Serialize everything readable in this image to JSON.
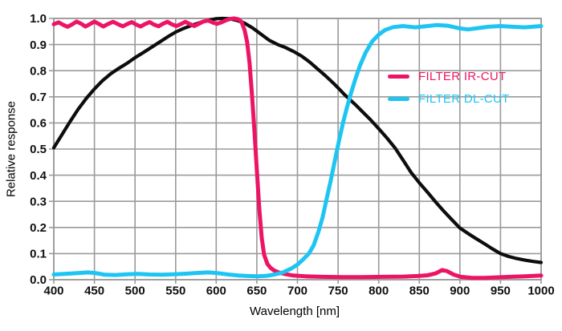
{
  "chart_data": {
    "type": "line",
    "title": "",
    "xlabel": "Wavelength [nm]",
    "ylabel": "Relative response",
    "xlim": [
      400,
      1000
    ],
    "ylim": [
      0,
      1.0
    ],
    "grid": true,
    "grid_color": "#9a9a9a",
    "tick_label_color": "#111111",
    "legend_position": "upper-right",
    "x_ticks": [
      "400",
      "450",
      "500",
      "550",
      "600",
      "650",
      "700",
      "750",
      "800",
      "850",
      "900",
      "950",
      "1000"
    ],
    "y_ticks": [
      "0.0",
      "0.1",
      "0.2",
      "0.3",
      "0.4",
      "0.5",
      "0.6",
      "0.7",
      "0.8",
      "0.9",
      "1.0"
    ],
    "series": [
      {
        "id": "sensor-response",
        "name": "",
        "in_legend": false,
        "color": "#0d0d0d",
        "stroke_width": 4.2,
        "points": [
          [
            400,
            0.505
          ],
          [
            410,
            0.555
          ],
          [
            420,
            0.605
          ],
          [
            430,
            0.652
          ],
          [
            440,
            0.694
          ],
          [
            450,
            0.73
          ],
          [
            460,
            0.762
          ],
          [
            470,
            0.788
          ],
          [
            480,
            0.809
          ],
          [
            490,
            0.828
          ],
          [
            500,
            0.85
          ],
          [
            510,
            0.869
          ],
          [
            520,
            0.889
          ],
          [
            530,
            0.909
          ],
          [
            540,
            0.929
          ],
          [
            550,
            0.948
          ],
          [
            560,
            0.962
          ],
          [
            570,
            0.974
          ],
          [
            580,
            0.984
          ],
          [
            590,
            0.993
          ],
          [
            600,
            0.999
          ],
          [
            608,
            1.0
          ],
          [
            616,
            0.999
          ],
          [
            625,
            0.993
          ],
          [
            635,
            0.982
          ],
          [
            645,
            0.963
          ],
          [
            655,
            0.94
          ],
          [
            665,
            0.917
          ],
          [
            675,
            0.901
          ],
          [
            685,
            0.889
          ],
          [
            695,
            0.874
          ],
          [
            705,
            0.856
          ],
          [
            715,
            0.833
          ],
          [
            725,
            0.806
          ],
          [
            735,
            0.779
          ],
          [
            745,
            0.75
          ],
          [
            752,
            0.728
          ],
          [
            758,
            0.708
          ],
          [
            765,
            0.688
          ],
          [
            772,
            0.668
          ],
          [
            780,
            0.643
          ],
          [
            790,
            0.612
          ],
          [
            800,
            0.578
          ],
          [
            810,
            0.543
          ],
          [
            820,
            0.505
          ],
          [
            830,
            0.458
          ],
          [
            840,
            0.41
          ],
          [
            850,
            0.371
          ],
          [
            860,
            0.335
          ],
          [
            870,
            0.298
          ],
          [
            880,
            0.263
          ],
          [
            890,
            0.23
          ],
          [
            900,
            0.198
          ],
          [
            910,
            0.177
          ],
          [
            920,
            0.157
          ],
          [
            930,
            0.138
          ],
          [
            940,
            0.118
          ],
          [
            950,
            0.1
          ],
          [
            960,
            0.089
          ],
          [
            970,
            0.081
          ],
          [
            980,
            0.075
          ],
          [
            990,
            0.07
          ],
          [
            1000,
            0.066
          ]
        ]
      },
      {
        "id": "filter-ir-cut",
        "name": "FILTER IR-CUT",
        "in_legend": true,
        "color": "#ed1464",
        "stroke_width": 5,
        "points": [
          [
            400,
            0.978
          ],
          [
            406,
            0.985
          ],
          [
            412,
            0.975
          ],
          [
            417,
            0.968
          ],
          [
            423,
            0.978
          ],
          [
            428,
            0.988
          ],
          [
            434,
            0.979
          ],
          [
            439,
            0.969
          ],
          [
            445,
            0.979
          ],
          [
            450,
            0.988
          ],
          [
            456,
            0.978
          ],
          [
            461,
            0.969
          ],
          [
            467,
            0.979
          ],
          [
            473,
            0.987
          ],
          [
            479,
            0.978
          ],
          [
            485,
            0.97
          ],
          [
            490,
            0.978
          ],
          [
            496,
            0.986
          ],
          [
            501,
            0.977
          ],
          [
            507,
            0.969
          ],
          [
            512,
            0.978
          ],
          [
            518,
            0.986
          ],
          [
            523,
            0.977
          ],
          [
            529,
            0.97
          ],
          [
            534,
            0.979
          ],
          [
            540,
            0.987
          ],
          [
            545,
            0.978
          ],
          [
            551,
            0.971
          ],
          [
            557,
            0.979
          ],
          [
            562,
            0.987
          ],
          [
            568,
            0.978
          ],
          [
            573,
            0.971
          ],
          [
            579,
            0.98
          ],
          [
            584,
            0.988
          ],
          [
            590,
            0.992
          ],
          [
            596,
            0.984
          ],
          [
            601,
            0.979
          ],
          [
            607,
            0.986
          ],
          [
            612,
            0.993
          ],
          [
            617,
            0.998
          ],
          [
            622,
            1.0
          ],
          [
            627,
            0.997
          ],
          [
            631,
            0.988
          ],
          [
            635,
            0.955
          ],
          [
            638,
            0.91
          ],
          [
            641,
            0.83
          ],
          [
            644,
            0.71
          ],
          [
            647,
            0.57
          ],
          [
            650,
            0.42
          ],
          [
            653,
            0.27
          ],
          [
            656,
            0.16
          ],
          [
            659,
            0.095
          ],
          [
            663,
            0.06
          ],
          [
            667,
            0.045
          ],
          [
            671,
            0.036
          ],
          [
            677,
            0.028
          ],
          [
            684,
            0.022
          ],
          [
            695,
            0.016
          ],
          [
            710,
            0.013
          ],
          [
            730,
            0.011
          ],
          [
            755,
            0.01
          ],
          [
            780,
            0.01
          ],
          [
            805,
            0.011
          ],
          [
            830,
            0.012
          ],
          [
            848,
            0.014
          ],
          [
            860,
            0.017
          ],
          [
            870,
            0.024
          ],
          [
            878,
            0.037
          ],
          [
            884,
            0.033
          ],
          [
            892,
            0.02
          ],
          [
            901,
            0.011
          ],
          [
            915,
            0.007
          ],
          [
            930,
            0.007
          ],
          [
            945,
            0.009
          ],
          [
            962,
            0.011
          ],
          [
            980,
            0.013
          ],
          [
            1000,
            0.016
          ]
        ]
      },
      {
        "id": "filter-dl-cut",
        "name": "FILTER DL-CUT",
        "in_legend": true,
        "color": "#1ec5f2",
        "stroke_width": 5,
        "points": [
          [
            400,
            0.02
          ],
          [
            413,
            0.022
          ],
          [
            428,
            0.025
          ],
          [
            442,
            0.028
          ],
          [
            452,
            0.025
          ],
          [
            463,
            0.019
          ],
          [
            476,
            0.018
          ],
          [
            490,
            0.021
          ],
          [
            504,
            0.022
          ],
          [
            518,
            0.02
          ],
          [
            533,
            0.019
          ],
          [
            548,
            0.021
          ],
          [
            563,
            0.023
          ],
          [
            578,
            0.026
          ],
          [
            590,
            0.028
          ],
          [
            602,
            0.025
          ],
          [
            615,
            0.02
          ],
          [
            628,
            0.016
          ],
          [
            640,
            0.014
          ],
          [
            652,
            0.013
          ],
          [
            662,
            0.015
          ],
          [
            672,
            0.02
          ],
          [
            682,
            0.028
          ],
          [
            692,
            0.042
          ],
          [
            700,
            0.058
          ],
          [
            707,
            0.078
          ],
          [
            714,
            0.1
          ],
          [
            720,
            0.132
          ],
          [
            726,
            0.185
          ],
          [
            731,
            0.24
          ],
          [
            736,
            0.31
          ],
          [
            741,
            0.38
          ],
          [
            746,
            0.455
          ],
          [
            751,
            0.53
          ],
          [
            756,
            0.6
          ],
          [
            761,
            0.66
          ],
          [
            766,
            0.715
          ],
          [
            771,
            0.765
          ],
          [
            777,
            0.82
          ],
          [
            784,
            0.87
          ],
          [
            792,
            0.912
          ],
          [
            800,
            0.938
          ],
          [
            808,
            0.956
          ],
          [
            818,
            0.967
          ],
          [
            830,
            0.971
          ],
          [
            845,
            0.966
          ],
          [
            858,
            0.97
          ],
          [
            872,
            0.975
          ],
          [
            885,
            0.972
          ],
          [
            898,
            0.963
          ],
          [
            910,
            0.958
          ],
          [
            922,
            0.963
          ],
          [
            935,
            0.968
          ],
          [
            950,
            0.971
          ],
          [
            965,
            0.968
          ],
          [
            980,
            0.966
          ],
          [
            1000,
            0.971
          ]
        ]
      }
    ]
  }
}
